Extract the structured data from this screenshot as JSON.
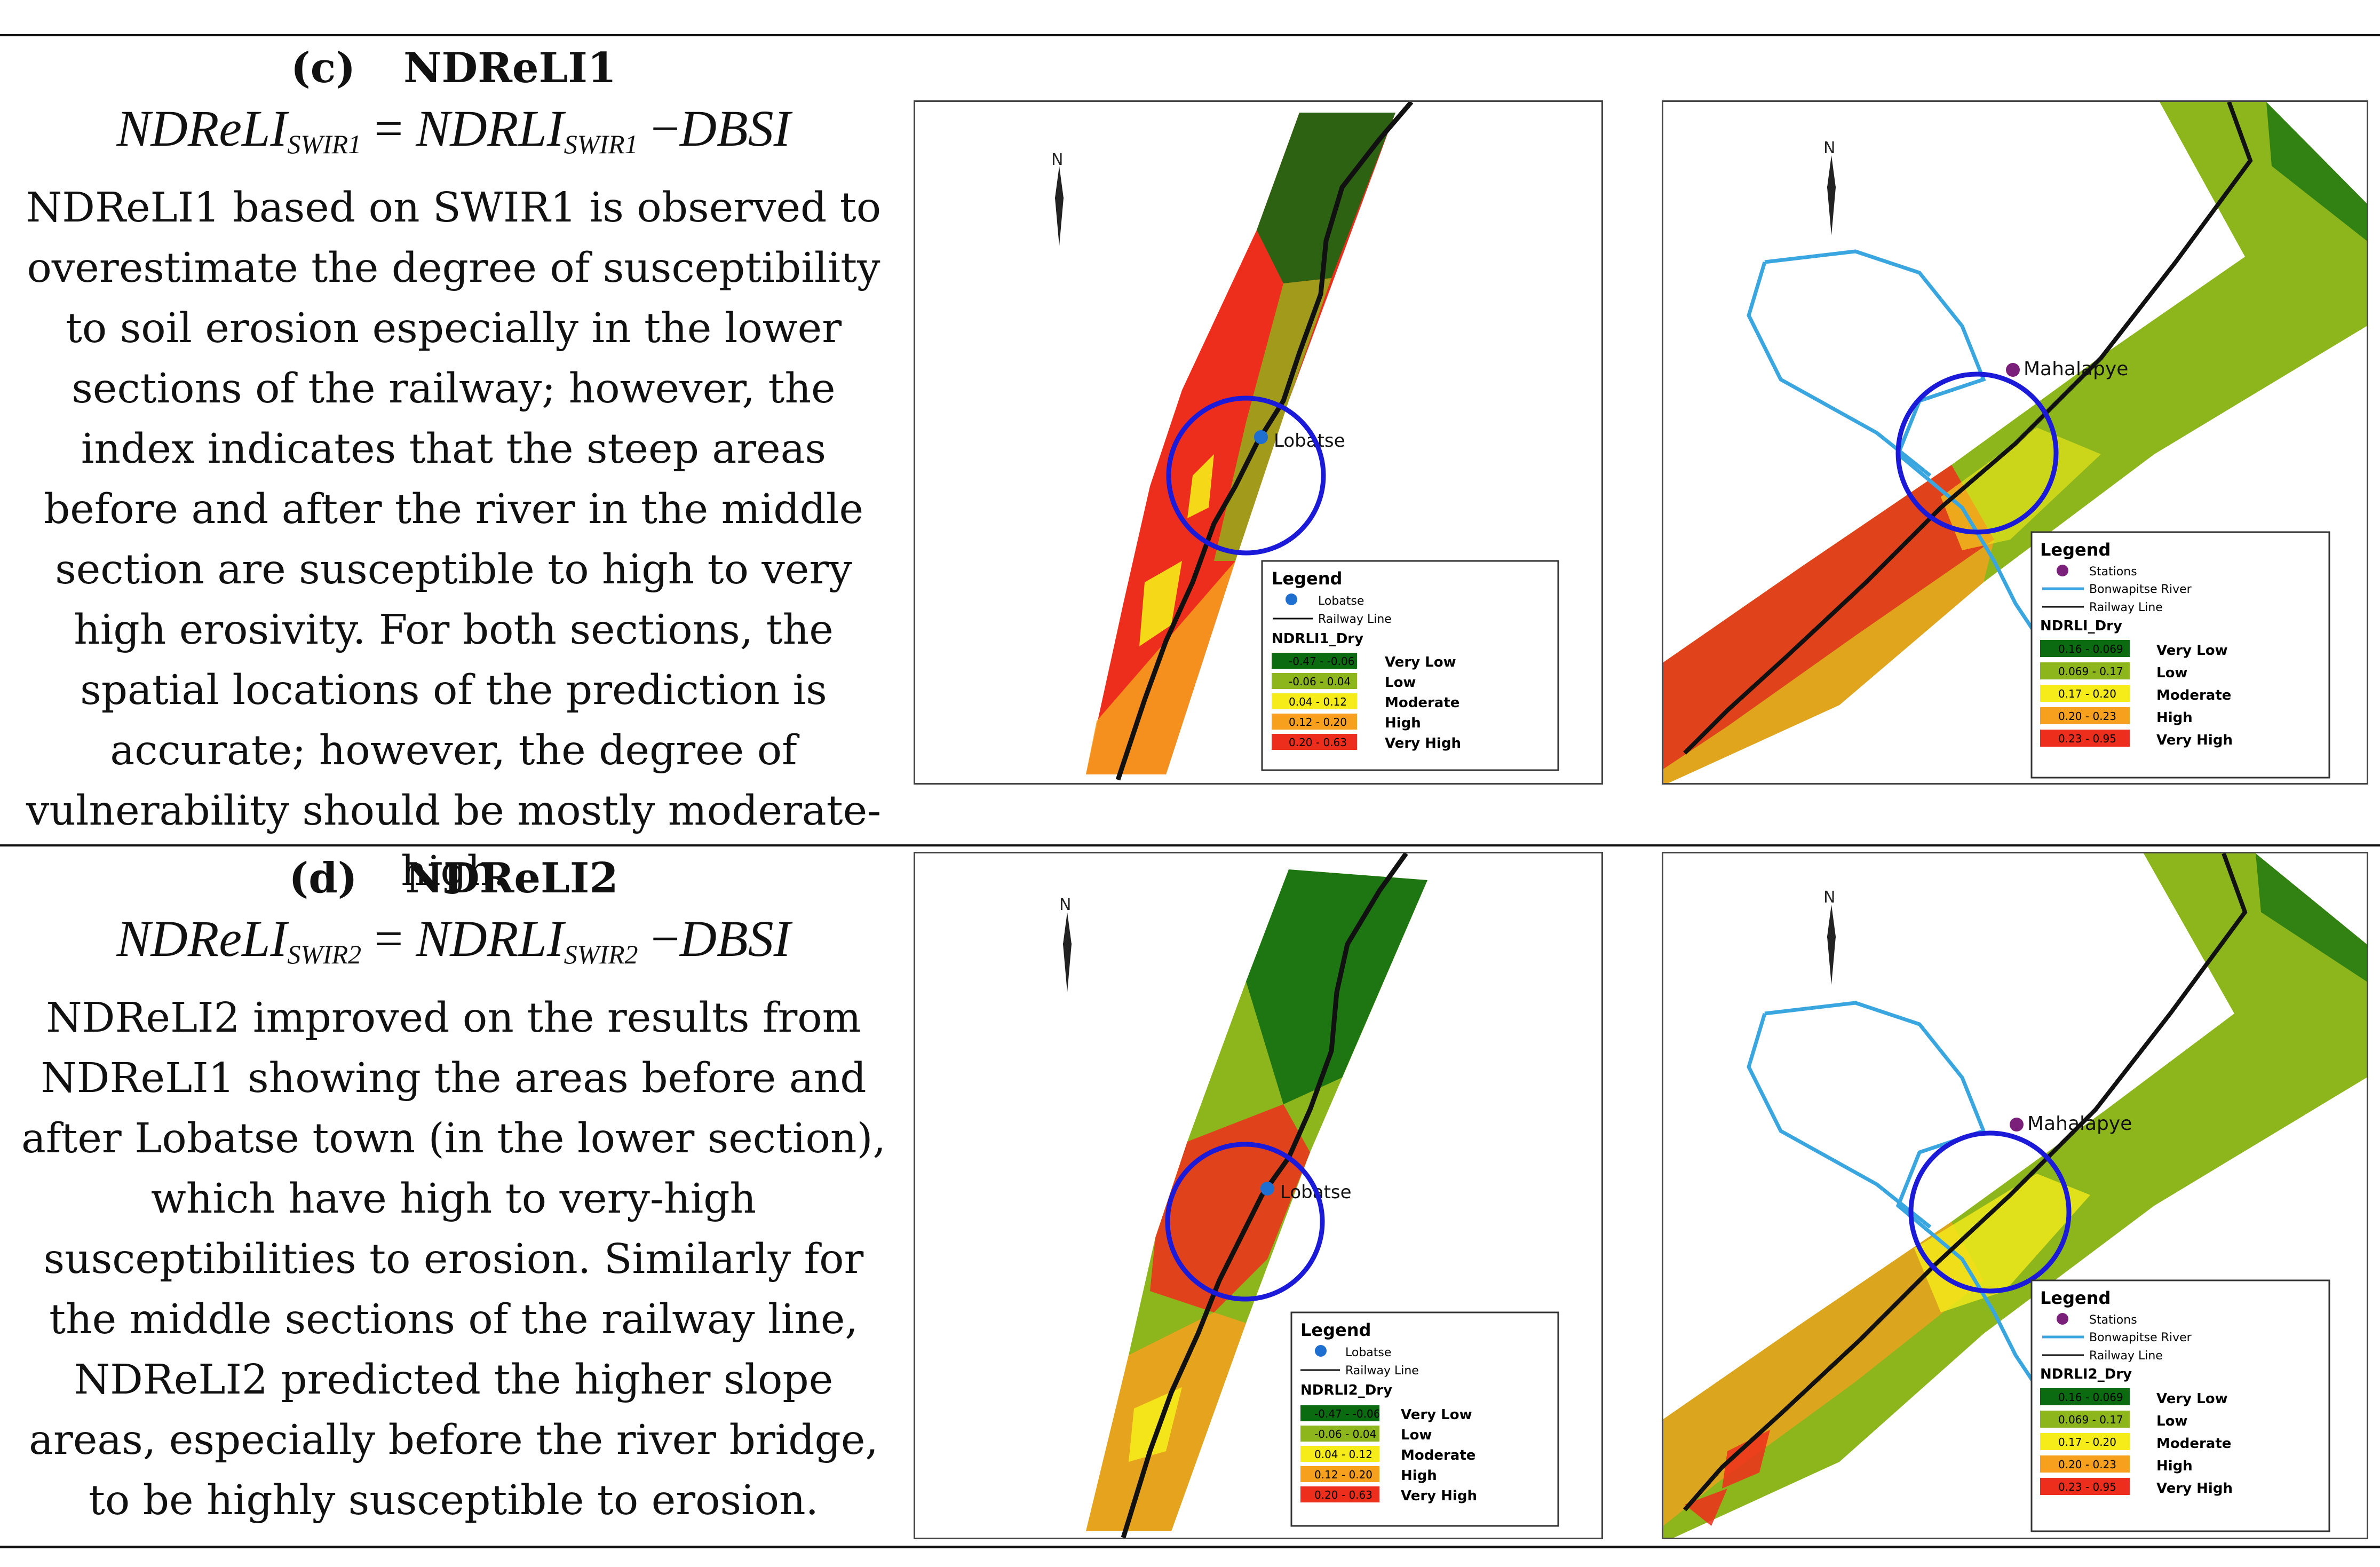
{
  "sections": [
    {
      "label": "(c)",
      "name": "NDReLI1",
      "formula": {
        "lhs": "NDReLI",
        "lhs_sub": "SWIR1",
        "eq": "=",
        "rhs": "NDRLI",
        "rhs_sub": "SWIR1",
        "op": "−",
        "term": "DBSI"
      },
      "description": "NDReLI1 based on SWIR1 is observed to overestimate the degree of susceptibility to soil erosion especially in the lower sections of the railway; however, the index indicates that the steep areas before and after the river in the middle section are susceptible to high to very high erosivity. For both sections, the spatial locations of the prediction is accurate; however, the degree of vulnerability should be mostly moderate-high.",
      "map_lower": {
        "north": "N",
        "town": "Lobatse",
        "legend": {
          "title": "Legend",
          "point_label": "Lobatse",
          "rail_label": "Railway Line",
          "index_title": "NDRLI1_Dry",
          "classes": [
            {
              "range": "-0.47 - -0.06",
              "name": "Very Low",
              "color": "#0b6b10"
            },
            {
              "range": "-0.06 - 0.04",
              "name": "Low",
              "color": "#8db51c"
            },
            {
              "range": "0.04 - 0.12",
              "name": "Moderate",
              "color": "#f5ec1a"
            },
            {
              "range": "0.12 - 0.20",
              "name": "High",
              "color": "#f6a01e"
            },
            {
              "range": "0.20 - 0.63",
              "name": "Very High",
              "color": "#ee2e1c"
            }
          ]
        }
      },
      "map_middle": {
        "north": "N",
        "town": "Mahalapye",
        "legend": {
          "title": "Legend",
          "point_label": "Stations",
          "river_label": "Bonwapitse River",
          "rail_label": "Railway Line",
          "index_title": "NDRLI_Dry",
          "classes": [
            {
              "range": "0.16 - 0.069",
              "name": "Very Low",
              "color": "#0b6b10"
            },
            {
              "range": "0.069 - 0.17",
              "name": "Low",
              "color": "#8db51c"
            },
            {
              "range": "0.17 - 0.20",
              "name": "Moderate",
              "color": "#f5ec1a"
            },
            {
              "range": "0.20 - 0.23",
              "name": "High",
              "color": "#f6a01e"
            },
            {
              "range": "0.23 - 0.95",
              "name": "Very High",
              "color": "#ee2e1c"
            }
          ]
        }
      }
    },
    {
      "label": "(d)",
      "name": "NDReLI2",
      "formula": {
        "lhs": "NDReLI",
        "lhs_sub": "SWIR2",
        "eq": "=",
        "rhs": "NDRLI",
        "rhs_sub": "SWIR2",
        "op": "−",
        "term": "DBSI"
      },
      "description": "NDReLI2 improved on the results from NDReLI1 showing the areas before and after Lobatse town (in the lower section), which have high to very-high susceptibilities to erosion. Similarly for the middle sections of the railway line, NDReLI2 predicted the higher slope areas, especially before the river bridge, to be highly susceptible to erosion.",
      "map_lower": {
        "north": "N",
        "town": "Lobatse",
        "legend": {
          "title": "Legend",
          "point_label": "Lobatse",
          "rail_label": "Railway Line",
          "index_title": "NDRLI2_Dry",
          "classes": [
            {
              "range": "-0.47 - -0.06",
              "name": "Very Low",
              "color": "#0b6b10"
            },
            {
              "range": "-0.06 - 0.04",
              "name": "Low",
              "color": "#8db51c"
            },
            {
              "range": "0.04 - 0.12",
              "name": "Moderate",
              "color": "#f5ec1a"
            },
            {
              "range": "0.12 - 0.20",
              "name": "High",
              "color": "#f6a01e"
            },
            {
              "range": "0.20 - 0.63",
              "name": "Very High",
              "color": "#ee2e1c"
            }
          ]
        }
      },
      "map_middle": {
        "north": "N",
        "town": "Mahalapye",
        "legend": {
          "title": "Legend",
          "point_label": "Stations",
          "river_label": "Bonwapitse River",
          "rail_label": "Railway Line",
          "index_title": "NDRLI2_Dry",
          "classes": [
            {
              "range": "0.16 - 0.069",
              "name": "Very Low",
              "color": "#0b6b10"
            },
            {
              "range": "0.069 - 0.17",
              "name": "Low",
              "color": "#8db51c"
            },
            {
              "range": "0.17 - 0.20",
              "name": "Moderate",
              "color": "#f5ec1a"
            },
            {
              "range": "0.20 - 0.23",
              "name": "High",
              "color": "#f6a01e"
            },
            {
              "range": "0.23 - 0.95",
              "name": "Very High",
              "color": "#ee2e1c"
            }
          ]
        }
      }
    }
  ]
}
